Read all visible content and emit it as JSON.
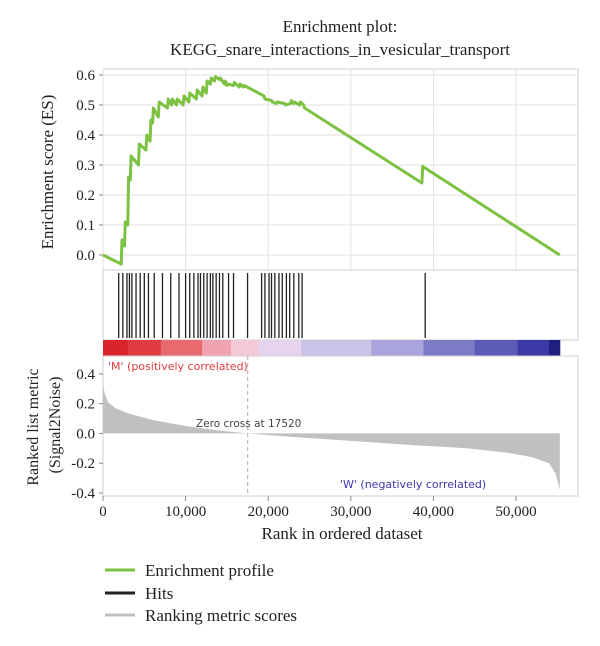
{
  "chart_data": {
    "type": "line",
    "title": "Enrichment plot:",
    "subtitle": "KEGG_snare_interactions_in_vesicular_transport",
    "xlabel": "Rank in ordered dataset",
    "xlim": [
      0,
      57500
    ],
    "x_ticks": [
      "0",
      "10,000",
      "20,000",
      "30,000",
      "40,000",
      "50,000"
    ],
    "x_tick_values": [
      0,
      10000,
      20000,
      30000,
      40000,
      50000
    ],
    "enrichment_panel": {
      "ylabel": "Enrichment score (ES)",
      "ylim": [
        -0.05,
        0.62
      ],
      "y_ticks": [
        "0.0",
        "0.1",
        "0.2",
        "0.3",
        "0.4",
        "0.5",
        "0.6"
      ],
      "y_tick_values": [
        0.0,
        0.1,
        0.2,
        0.3,
        0.4,
        0.5,
        0.6
      ],
      "grid": true,
      "series": [
        {
          "name": "Enrichment profile",
          "color": "#7dc242",
          "x": [
            0,
            2200,
            2300,
            2600,
            2700,
            3000,
            3100,
            3300,
            3400,
            4300,
            4400,
            5200,
            5300,
            5700,
            5800,
            6000,
            6100,
            6700,
            6800,
            7800,
            7900,
            8300,
            8400,
            8900,
            9000,
            9700,
            9800,
            10400,
            10500,
            11300,
            11400,
            12000,
            12100,
            12500,
            12600,
            13000,
            13100,
            13500,
            13600,
            14100,
            14200,
            14700,
            14800,
            15000,
            15100,
            15800,
            15900,
            16500,
            16600,
            17000,
            17100,
            19500,
            19600,
            20400,
            20500,
            21000,
            21100,
            22000,
            22100,
            22700,
            22800,
            23100,
            23200,
            23800,
            23900,
            24300,
            24400,
            38600,
            38700,
            55300
          ],
          "y": [
            0.0,
            -0.03,
            0.05,
            0.03,
            0.11,
            0.1,
            0.26,
            0.25,
            0.33,
            0.3,
            0.37,
            0.35,
            0.4,
            0.38,
            0.45,
            0.44,
            0.49,
            0.46,
            0.51,
            0.49,
            0.52,
            0.5,
            0.52,
            0.5,
            0.52,
            0.5,
            0.53,
            0.51,
            0.54,
            0.52,
            0.55,
            0.53,
            0.56,
            0.54,
            0.58,
            0.57,
            0.59,
            0.58,
            0.595,
            0.585,
            0.59,
            0.57,
            0.58,
            0.565,
            0.57,
            0.565,
            0.575,
            0.56,
            0.57,
            0.56,
            0.565,
            0.53,
            0.52,
            0.515,
            0.51,
            0.505,
            0.51,
            0.505,
            0.5,
            0.505,
            0.515,
            0.505,
            0.51,
            0.5,
            0.51,
            0.5,
            0.49,
            0.24,
            0.295,
            0.0
          ]
        }
      ]
    },
    "hits": {
      "name": "Hits",
      "color": "#222222",
      "positions": [
        1900,
        2400,
        2900,
        3200,
        3500,
        4000,
        4500,
        5000,
        5500,
        6200,
        7200,
        8200,
        9200,
        10000,
        10500,
        11000,
        11500,
        11800,
        12200,
        12600,
        13000,
        13300,
        13700,
        14100,
        14500,
        15200,
        15800,
        17500,
        19200,
        19600,
        20100,
        20400,
        20800,
        21300,
        21700,
        22200,
        22600,
        23100,
        23700,
        24100,
        39000
      ]
    },
    "color_bar": {
      "colors": [
        "#d8242a",
        "#e03c40",
        "#e86a6e",
        "#f0a4b0",
        "#f5c8d8",
        "#e6d4ee",
        "#c9c3e7",
        "#a9a4db",
        "#7d7ac6",
        "#5d5bb8",
        "#3b39a6",
        "#2b2a95",
        "#1f1f80"
      ],
      "stops": [
        0,
        3000,
        7000,
        12000,
        15500,
        18800,
        24000,
        32500,
        38800,
        45000,
        50200,
        54000,
        55300
      ]
    },
    "ranked_panel": {
      "ylabel": "Ranked list metric\n(Signal2Noise)",
      "ylim": [
        -0.42,
        0.52
      ],
      "y_ticks": [
        "0.4",
        "0.2",
        "0.0",
        "-0.2",
        "-0.4"
      ],
      "y_tick_values": [
        0.4,
        0.2,
        0.0,
        -0.2,
        -0.4
      ],
      "series": [
        {
          "name": "Ranking metric scores",
          "color": "#c0c0c0",
          "x": [
            0,
            200,
            600,
            1500,
            3000,
            6000,
            10000,
            14000,
            17520,
            22000,
            30000,
            38000,
            44000,
            49000,
            52000,
            54000,
            54800,
            55300
          ],
          "y": [
            0.33,
            0.27,
            0.21,
            0.17,
            0.135,
            0.09,
            0.05,
            0.02,
            0.0,
            -0.02,
            -0.05,
            -0.08,
            -0.1,
            -0.13,
            -0.16,
            -0.2,
            -0.27,
            -0.38
          ]
        }
      ],
      "annotations": {
        "positive": "'M' (positively correlated)",
        "negative": "'W' (negatively correlated)",
        "zero_cross": "Zero cross at 17520",
        "zero_cross_x": 17520
      }
    },
    "legend": {
      "placement": "bottom-left",
      "entries": [
        {
          "label": "Enrichment profile",
          "color": "#7dc242"
        },
        {
          "label": "Hits",
          "color": "#222222"
        },
        {
          "label": "Ranking metric scores",
          "color": "#c0c0c0"
        }
      ]
    }
  }
}
